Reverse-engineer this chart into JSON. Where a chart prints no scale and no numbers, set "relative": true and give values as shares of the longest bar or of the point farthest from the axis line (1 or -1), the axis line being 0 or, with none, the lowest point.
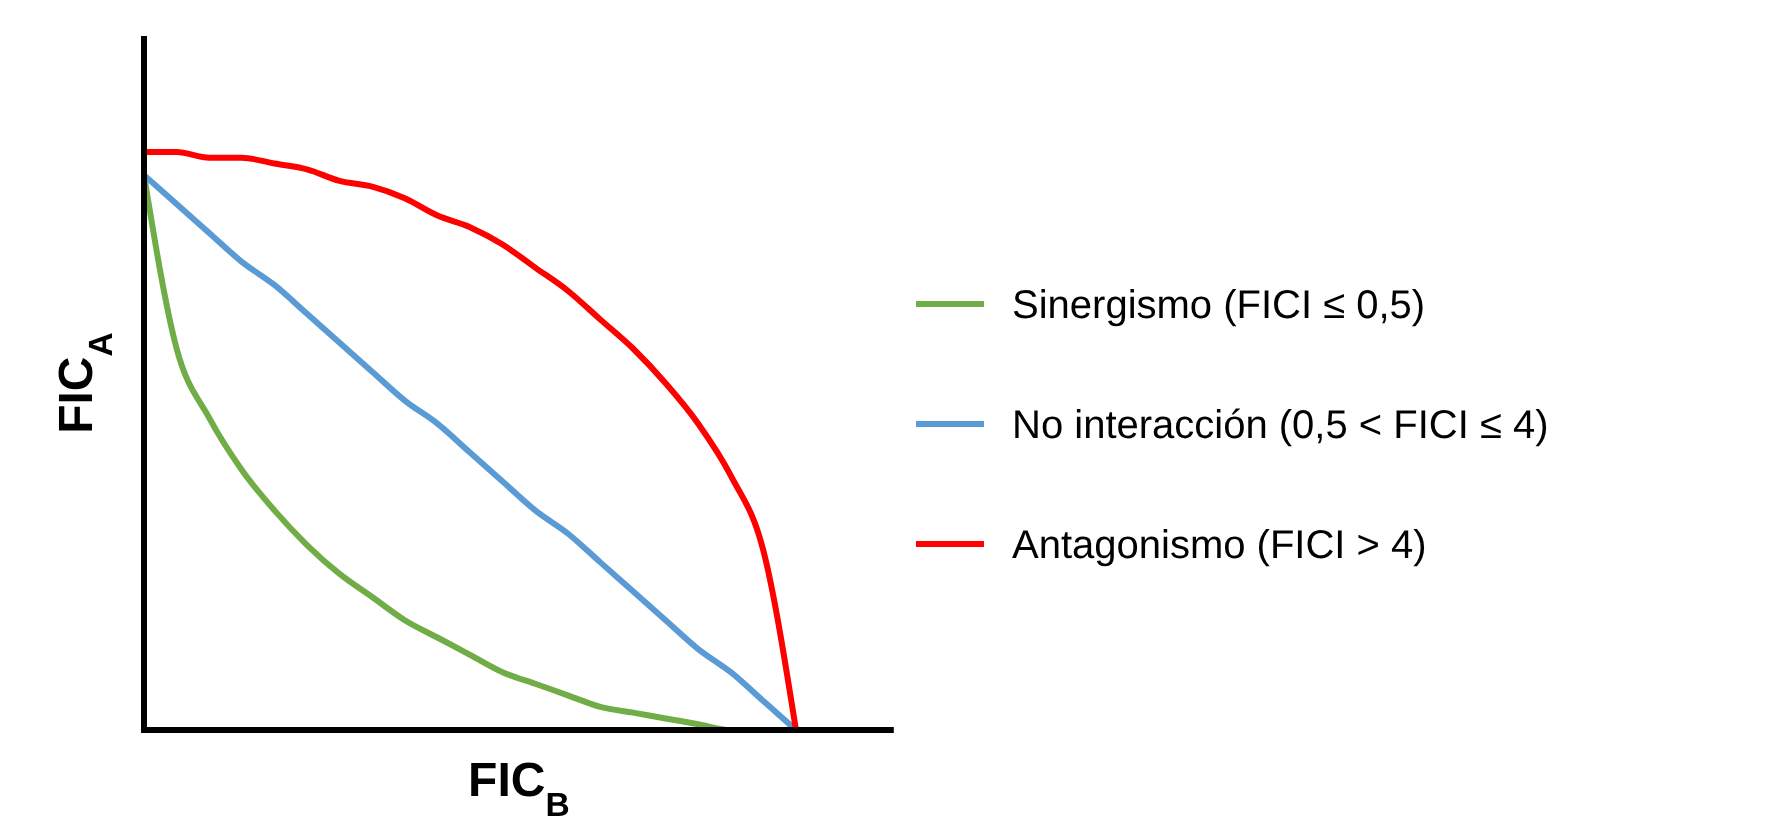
{
  "chart_data": {
    "type": "line",
    "relative": true,
    "xlabel": "FIC$_{B}$",
    "ylabel": "FIC$_{A}$",
    "categories": [
      null,
      null,
      null,
      null,
      null,
      null,
      null,
      null,
      null,
      null,
      null,
      null,
      null,
      null,
      null,
      null,
      null,
      null,
      null,
      null,
      null,
      null,
      null,
      null
    ],
    "series": [
      {
        "name": "Sinergismo (FICI ≤ 0,5)",
        "color": "#70ad47",
        "values": [
          0.96,
          0.66,
          0.54,
          0.45,
          0.38,
          0.32,
          0.27,
          0.23,
          0.19,
          0.16,
          0.13,
          0.1,
          0.08,
          0.06,
          0.04,
          0.03,
          0.02,
          0.01,
          0.0,
          0.0,
          0,
          null,
          null,
          null
        ]
      },
      {
        "name": "No interacción (0,5 < FICI ≤ 4)",
        "color": "#5b9bd5",
        "values": [
          0.96,
          0.91,
          0.86,
          0.81,
          0.77,
          0.72,
          0.67,
          0.62,
          0.57,
          0.53,
          0.48,
          0.43,
          0.38,
          0.34,
          0.29,
          0.24,
          0.19,
          0.14,
          0.1,
          0.05,
          0,
          null,
          null,
          null
        ]
      },
      {
        "name": "Antagonismo (FICI > 4)",
        "color": "#ff0000",
        "values": [
          1,
          1.0,
          0.99,
          0.99,
          0.98,
          0.97,
          0.95,
          0.94,
          0.92,
          0.89,
          0.87,
          0.84,
          0.8,
          0.76,
          0.71,
          0.66,
          0.6,
          0.53,
          0.44,
          0.31,
          0,
          null,
          null,
          null
        ]
      }
    ],
    "legend": "right",
    "marker": "none",
    "line_style": "solid"
  }
}
